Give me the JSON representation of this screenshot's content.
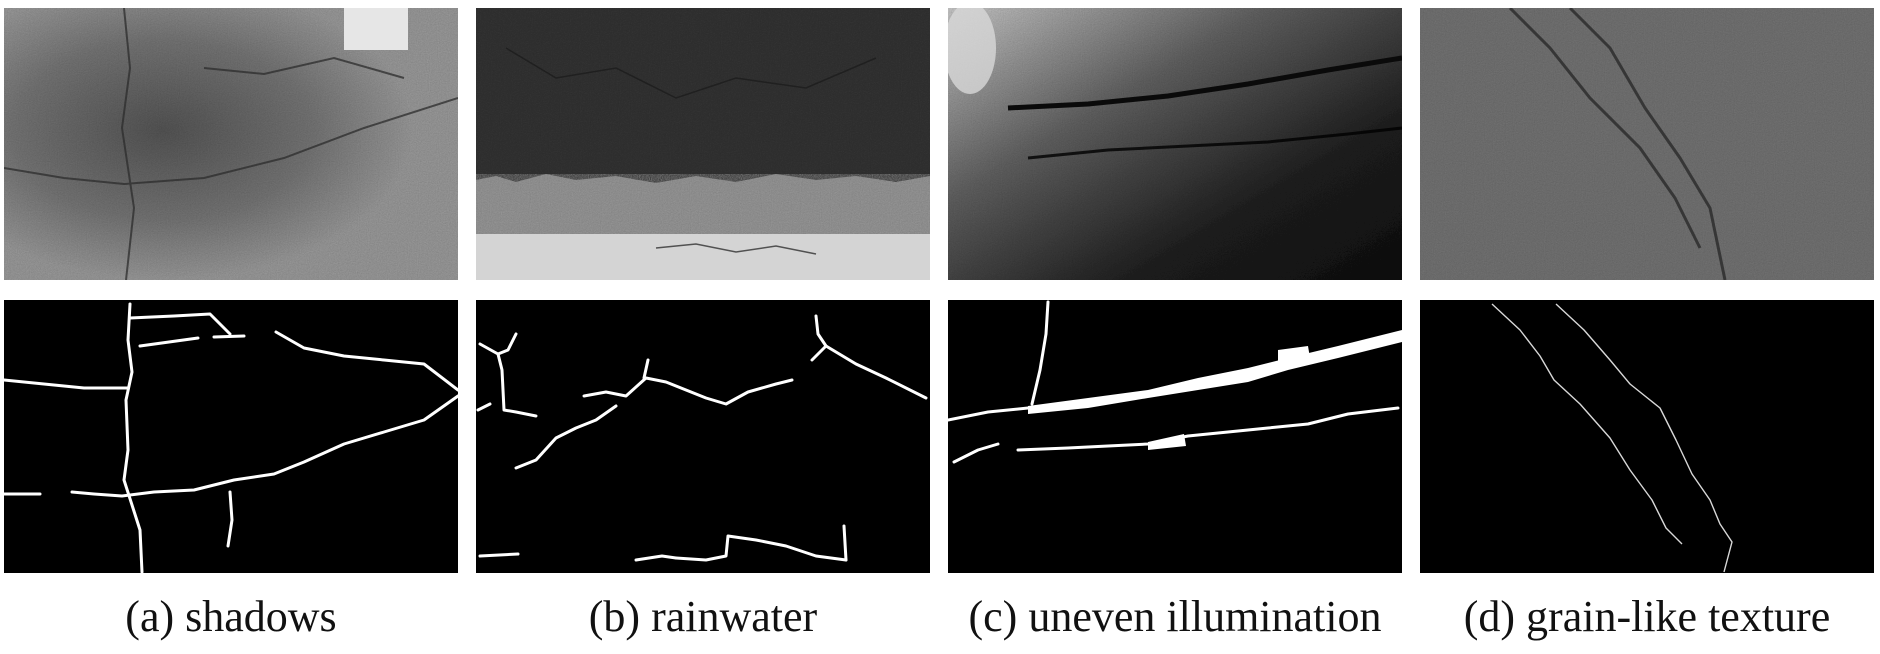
{
  "panels": [
    {
      "caption": "(a) shadows",
      "photo_icon": "asphalt-with-shadow-photo",
      "mask_icon": "crack-mask"
    },
    {
      "caption": "(b) rainwater",
      "photo_icon": "asphalt-with-rainwater-photo",
      "mask_icon": "crack-mask"
    },
    {
      "caption": "(c) uneven illumination",
      "photo_icon": "asphalt-uneven-illumination-photo",
      "mask_icon": "crack-mask"
    },
    {
      "caption": "(d) grain-like texture",
      "photo_icon": "asphalt-grain-texture-photo",
      "mask_icon": "crack-mask"
    }
  ]
}
